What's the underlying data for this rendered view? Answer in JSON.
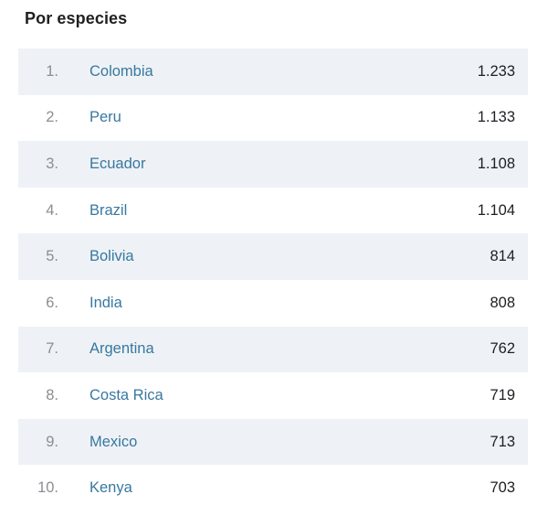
{
  "title": "Por especies",
  "table": {
    "rows": [
      {
        "rank": "1.",
        "country": "Colombia",
        "value": "1.233"
      },
      {
        "rank": "2.",
        "country": "Peru",
        "value": "1.133"
      },
      {
        "rank": "3.",
        "country": "Ecuador",
        "value": "1.108"
      },
      {
        "rank": "4.",
        "country": "Brazil",
        "value": "1.104"
      },
      {
        "rank": "5.",
        "country": "Bolivia",
        "value": "814"
      },
      {
        "rank": "6.",
        "country": "India",
        "value": "808"
      },
      {
        "rank": "7.",
        "country": "Argentina",
        "value": "762"
      },
      {
        "rank": "8.",
        "country": "Costa Rica",
        "value": "719"
      },
      {
        "rank": "9.",
        "country": "Mexico",
        "value": "713"
      },
      {
        "rank": "10.",
        "country": "Kenya",
        "value": "703"
      }
    ]
  },
  "colors": {
    "link": "#3878a0",
    "row_shade": "#eef2f6",
    "rank_gray": "#8a8d91",
    "value_dark": "#1d1f23",
    "title_dark": "#1e2022",
    "partial_strip": "#e7edf0"
  }
}
